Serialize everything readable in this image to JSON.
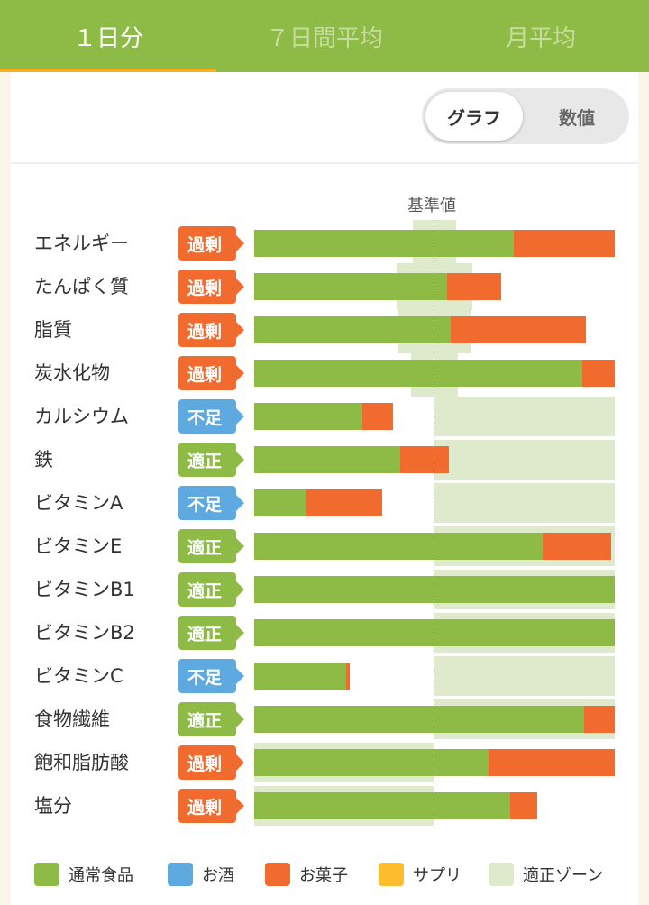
{
  "tabs": [
    {
      "label": "１日分",
      "active": true
    },
    {
      "label": "７日間平均",
      "active": false
    },
    {
      "label": "月平均",
      "active": false
    }
  ],
  "view_toggle": {
    "options": [
      "グラフ",
      "数値"
    ],
    "selected": "グラフ"
  },
  "reference_label": "基準値",
  "nutrients": [
    {
      "name": "エネルギー",
      "status": "過剰",
      "status_key": "over",
      "food_pct": 144,
      "snack_pct": 56,
      "zone": [
        88,
        112
      ]
    },
    {
      "name": "たんぱく質",
      "status": "過剰",
      "status_key": "over",
      "food_pct": 107,
      "snack_pct": 30,
      "zone": [
        79,
        121
      ]
    },
    {
      "name": "脂質",
      "status": "過剰",
      "status_key": "over",
      "food_pct": 109,
      "snack_pct": 75,
      "zone": [
        80,
        120
      ]
    },
    {
      "name": "炭水化物",
      "status": "過剰",
      "status_key": "over",
      "food_pct": 182,
      "snack_pct": 18,
      "zone": [
        87,
        113
      ]
    },
    {
      "name": "カルシウム",
      "status": "不足",
      "status_key": "under",
      "food_pct": 60,
      "snack_pct": 17,
      "zone": [
        100,
        200
      ]
    },
    {
      "name": "鉄",
      "status": "適正",
      "status_key": "ok",
      "food_pct": 81,
      "snack_pct": 27,
      "zone": [
        100,
        200
      ]
    },
    {
      "name": "ビタミンA",
      "status": "不足",
      "status_key": "under",
      "food_pct": 29,
      "snack_pct": 42,
      "zone": [
        100,
        200
      ]
    },
    {
      "name": "ビタミンE",
      "status": "適正",
      "status_key": "ok",
      "food_pct": 160,
      "snack_pct": 38,
      "zone": [
        100,
        200
      ]
    },
    {
      "name": "ビタミンB1",
      "status": "適正",
      "status_key": "ok",
      "food_pct": 200,
      "snack_pct": 0,
      "zone": [
        100,
        200
      ]
    },
    {
      "name": "ビタミンB2",
      "status": "適正",
      "status_key": "ok",
      "food_pct": 200,
      "snack_pct": 0,
      "zone": [
        100,
        200
      ]
    },
    {
      "name": "ビタミンC",
      "status": "不足",
      "status_key": "under",
      "food_pct": 51,
      "snack_pct": 2,
      "zone": [
        100,
        200
      ]
    },
    {
      "name": "食物繊維",
      "status": "適正",
      "status_key": "ok",
      "food_pct": 183,
      "snack_pct": 17,
      "zone": [
        100,
        200
      ]
    },
    {
      "name": "飽和脂肪酸",
      "status": "過剰",
      "status_key": "over",
      "food_pct": 130,
      "snack_pct": 70,
      "zone": [
        0,
        100
      ]
    },
    {
      "name": "塩分",
      "status": "過剰",
      "status_key": "over",
      "food_pct": 142,
      "snack_pct": 15,
      "zone": [
        0,
        100
      ]
    }
  ],
  "legend": [
    {
      "label": "通常食品",
      "color": "#8dbb45"
    },
    {
      "label": "お酒",
      "color": "#5eaae0"
    },
    {
      "label": "お菓子",
      "color": "#f26b2e"
    },
    {
      "label": "サプリ",
      "color": "#fbbd2c"
    },
    {
      "label": "適正ゾーン",
      "color": "#dfe9cb"
    }
  ],
  "colors": {
    "header": "#8dbb45",
    "food": "#8dbb45",
    "snack": "#f26b2e",
    "zone": "#dfe9cb",
    "tab_indicator": "#f5b21c"
  }
}
